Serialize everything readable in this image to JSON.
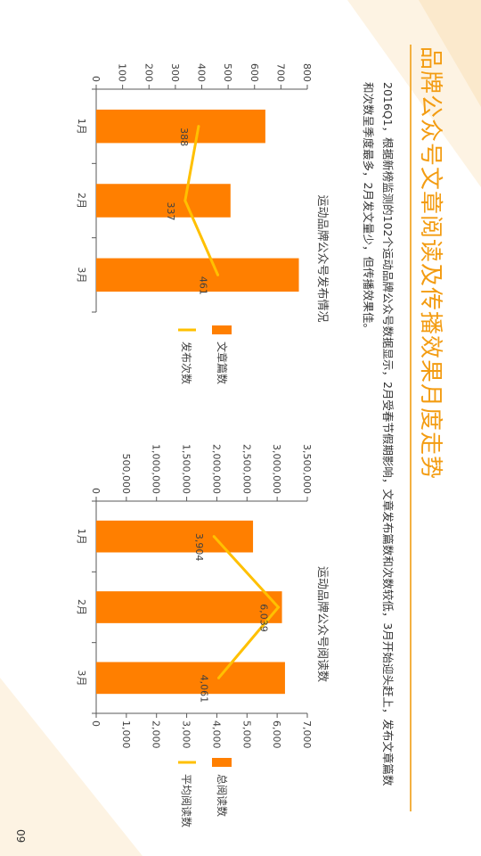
{
  "page": {
    "title": "品牌公众号文章阅读及传播效果月度走势",
    "summary": "2016Q1，根据新榜监测的102个运动品牌公众号数据显示，2月受春节假期影响，文章发布篇数和次数较低，3月开始迎头赶上，发布文章篇数和次数呈季度最多，2月发文量少，但传播效果佳。",
    "page_number": "09"
  },
  "colors": {
    "accent": "#f39c12",
    "bar": "#ff7f00",
    "line": "#ffc000",
    "axis": "#595959"
  },
  "chart_data": [
    {
      "type": "bar",
      "title": "运动品牌公众号发布情况",
      "categories": [
        "1月",
        "2月",
        "3月"
      ],
      "ylim": [
        0,
        800
      ],
      "yticks": [
        "0",
        "100",
        "200",
        "300",
        "400",
        "500",
        "600",
        "700",
        "800"
      ],
      "series": [
        {
          "name": "文章篇数",
          "kind": "bar",
          "values": [
            641,
            509,
            768
          ]
        },
        {
          "name": "发布次数",
          "kind": "line",
          "values": [
            388,
            337,
            461
          ],
          "labels": [
            "388",
            "337",
            "461"
          ]
        }
      ],
      "legend": "right"
    },
    {
      "type": "bar",
      "title": "运动品牌公众号阅读数",
      "categories": [
        "1月",
        "2月",
        "3月"
      ],
      "ylim": [
        0,
        3500000
      ],
      "yticks": [
        "0",
        "500,000",
        "1,000,000",
        "1,500,000",
        "2,000,000",
        "2,500,000",
        "3,000,000",
        "3,500,000"
      ],
      "y2lim": [
        0,
        7000
      ],
      "y2ticks": [
        "0",
        "1,000",
        "2,000",
        "3,000",
        "4,000",
        "5,000",
        "6,000",
        "7,000"
      ],
      "series": [
        {
          "name": "总阅读数",
          "kind": "bar",
          "values": [
            2600000,
            3080000,
            3130000
          ]
        },
        {
          "name": "平均阅读数",
          "kind": "line",
          "axis": "secondary",
          "values": [
            3904,
            6039,
            4061
          ],
          "labels": [
            "3,904",
            "6,039",
            "4,061"
          ]
        }
      ],
      "legend": "right"
    }
  ]
}
